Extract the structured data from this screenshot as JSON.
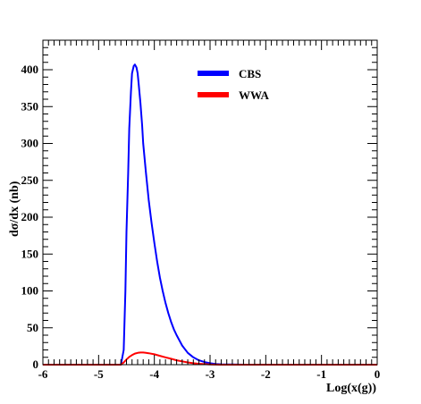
{
  "chart_data": {
    "type": "line",
    "xlabel": "Log(x(g))",
    "ylabel": "dσ/dx (nb)",
    "xlim": [
      -6,
      0
    ],
    "ylim": [
      0,
      440
    ],
    "x_ticks": [
      -6,
      -5,
      -4,
      -3,
      -2,
      -1,
      0
    ],
    "y_ticks": [
      0,
      50,
      100,
      150,
      200,
      250,
      300,
      350,
      400
    ],
    "x_tick_labels": [
      "-6",
      "-5",
      "-4",
      "-3",
      "-2",
      "-1",
      "0"
    ],
    "y_tick_labels": [
      "0",
      "50",
      "100",
      "150",
      "200",
      "250",
      "300",
      "350",
      "400"
    ],
    "legend_position": "top-center",
    "grid": false,
    "series": [
      {
        "name": "CBS",
        "color": "#0000ff",
        "x": [
          -6.0,
          -4.6,
          -4.55,
          -4.52,
          -4.5,
          -4.47,
          -4.45,
          -4.42,
          -4.4,
          -4.37,
          -4.35,
          -4.32,
          -4.3,
          -4.28,
          -4.25,
          -4.22,
          -4.2,
          -4.15,
          -4.1,
          -4.05,
          -4.0,
          -3.95,
          -3.9,
          -3.85,
          -3.8,
          -3.75,
          -3.7,
          -3.65,
          -3.6,
          -3.5,
          -3.4,
          -3.3,
          -3.2,
          -3.1,
          -3.0,
          -2.9,
          -2.8,
          -2.6,
          -2.4,
          0.0
        ],
        "y": [
          0,
          0,
          20,
          100,
          180,
          260,
          320,
          370,
          395,
          405,
          407,
          403,
          395,
          380,
          355,
          325,
          300,
          260,
          223,
          192,
          165,
          140,
          118,
          100,
          84,
          70,
          58,
          48,
          40,
          26,
          16,
          10,
          6,
          3.5,
          2,
          1,
          0.5,
          0.2,
          0,
          0
        ]
      },
      {
        "name": "WWA",
        "color": "#ff0000",
        "x": [
          -6.0,
          -4.6,
          -4.55,
          -4.5,
          -4.45,
          -4.4,
          -4.35,
          -4.3,
          -4.25,
          -4.2,
          -4.15,
          -4.1,
          -4.0,
          -3.9,
          -3.8,
          -3.7,
          -3.6,
          -3.5,
          -3.4,
          -3.3,
          -3.2,
          -3.1,
          -3.0,
          -2.8,
          0.0
        ],
        "y": [
          0,
          0,
          3,
          7,
          10.5,
          13,
          15,
          16,
          16.5,
          16.5,
          16,
          15.5,
          14,
          12,
          10,
          8,
          6,
          4.5,
          3,
          2,
          1.2,
          0.7,
          0.3,
          0,
          0
        ]
      }
    ]
  }
}
